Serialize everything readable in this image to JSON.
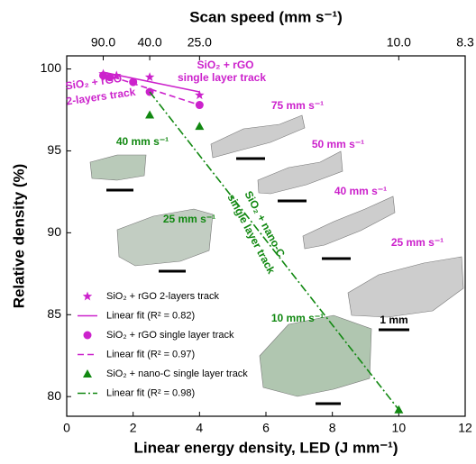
{
  "chart_data": {
    "type": "scatter",
    "xlabel": "Linear energy density, LED (J mm⁻¹)",
    "ylabel": "Relative density (%)",
    "x2label": "Scan speed (mm s⁻¹)",
    "xlim": [
      0,
      12
    ],
    "xticks": [
      0,
      2,
      4,
      6,
      8,
      10,
      12
    ],
    "ylim": [
      78.8,
      100.8
    ],
    "yticks": [
      80,
      85,
      90,
      95,
      100
    ],
    "x2ticks": [
      {
        "value": 1.1,
        "label": "90.0"
      },
      {
        "value": 2.5,
        "label": "40.0"
      },
      {
        "value": 4,
        "label": "25.0"
      },
      {
        "value": 10,
        "label": "10.0"
      },
      {
        "value": 12,
        "label": "8.3"
      }
    ],
    "series": [
      {
        "name": "SiO₂ + rGO 2-layers track",
        "color": "#cc22cc",
        "marker": "star",
        "x": [
          1.1,
          1.5,
          2.5,
          4.0
        ],
        "values": [
          99.7,
          99.6,
          99.5,
          98.4
        ]
      },
      {
        "name": "Linear fit (R² = 0.82)",
        "color": "#cc22cc",
        "marker": "line",
        "dash": "solid",
        "x": [
          1.1,
          4.0
        ],
        "values": [
          99.8,
          98.6
        ]
      },
      {
        "name": "SiO₂ + rGO single layer track",
        "color": "#cc22cc",
        "marker": "circle",
        "x": [
          1.1,
          1.3,
          2.0,
          2.5,
          4.0
        ],
        "values": [
          99.6,
          99.5,
          99.2,
          98.6,
          97.8
        ]
      },
      {
        "name": "Linear fit (R² = 0.97)",
        "color": "#cc22cc",
        "marker": "line",
        "dash": "dashed",
        "x": [
          1.1,
          4.0
        ],
        "values": [
          99.7,
          97.8
        ]
      },
      {
        "name": "SiO₂ + nano-C single layer track",
        "color": "#118811",
        "marker": "triangle",
        "x": [
          2.5,
          4.0,
          10.0
        ],
        "values": [
          97.2,
          96.5,
          79.2
        ]
      },
      {
        "name": "Linear fit (R² = 0.98)",
        "color": "#118811",
        "marker": "line",
        "dash": "dashdot",
        "x": [
          2.5,
          10.0
        ],
        "values": [
          98.6,
          79.2
        ]
      }
    ],
    "annotations": [
      {
        "text": "SiO₂ + rGO",
        "color": "#cc22cc"
      },
      {
        "text": "single layer track",
        "color": "#cc22cc"
      },
      {
        "text": "SiO₂ + rGO",
        "color": "#cc22cc"
      },
      {
        "text": "2-layers track",
        "color": "#cc22cc"
      },
      {
        "text": "75 mm s⁻¹",
        "color": "#cc22cc"
      },
      {
        "text": "50 mm s⁻¹",
        "color": "#cc22cc"
      },
      {
        "text": "40 mm s⁻¹",
        "color": "#cc22cc"
      },
      {
        "text": "25 mm s⁻¹",
        "color": "#cc22cc"
      },
      {
        "text": "40 mm s⁻¹",
        "color": "#118811"
      },
      {
        "text": "25 mm s⁻¹",
        "color": "#118811"
      },
      {
        "text": "10 mm s⁻¹",
        "color": "#118811"
      },
      {
        "text": "SiO₂ + nano-C",
        "color": "#118811"
      },
      {
        "text": "single layer track",
        "color": "#118811"
      },
      {
        "text": "1 mm",
        "color": "#000000"
      }
    ]
  }
}
